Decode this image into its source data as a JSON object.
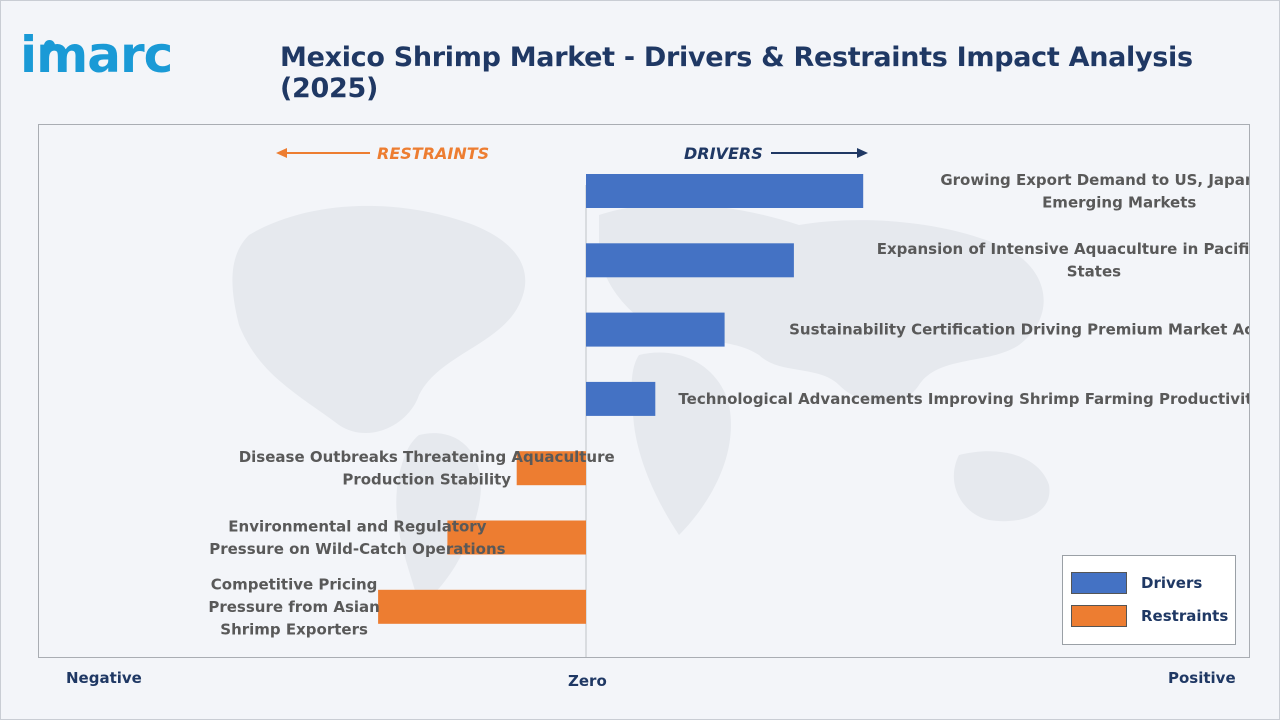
{
  "logo": {
    "text": "imarc"
  },
  "title": "Mexico Shrimp Market - Drivers & Restraints Impact Analysis (2025)",
  "direction": {
    "restraints": "RESTRAINTS",
    "drivers": "DRIVERS"
  },
  "axis": {
    "negative": "Negative",
    "zero": "Zero",
    "positive": "Positive"
  },
  "legend": [
    {
      "label": "Drivers",
      "color": "#4472c4"
    },
    {
      "label": "Restraints",
      "color": "#ed7d31"
    }
  ],
  "chart_data": {
    "type": "bar",
    "orientation": "horizontal-diverging",
    "title": "Mexico Shrimp Market - Drivers & Restraints Impact Analysis (2025)",
    "categories": [
      [
        "Growing Export Demand to US, Japan, and",
        "Emerging Markets"
      ],
      [
        "Expansion of Intensive Aquaculture in Pacific Coast",
        "States"
      ],
      [
        "Sustainability Certification Driving Premium Market Access"
      ],
      [
        "Technological Advancements Improving Shrimp Farming Productivity"
      ],
      [
        "Disease Outbreaks Threatening Aquaculture",
        "Production Stability"
      ],
      [
        "Environmental and Regulatory",
        "Pressure on Wild-Catch Operations"
      ],
      [
        "Competitive Pricing",
        "Pressure from Asian",
        "Shrimp Exporters"
      ]
    ],
    "series": [
      {
        "name": "Drivers",
        "color": "#4472c4",
        "values": [
          4,
          3,
          2,
          1,
          0,
          0,
          0
        ]
      },
      {
        "name": "Restraints",
        "color": "#ed7d31",
        "values": [
          0,
          0,
          0,
          0,
          -1,
          -2,
          -3
        ]
      }
    ],
    "xlim": [
      -8,
      9
    ]
  }
}
